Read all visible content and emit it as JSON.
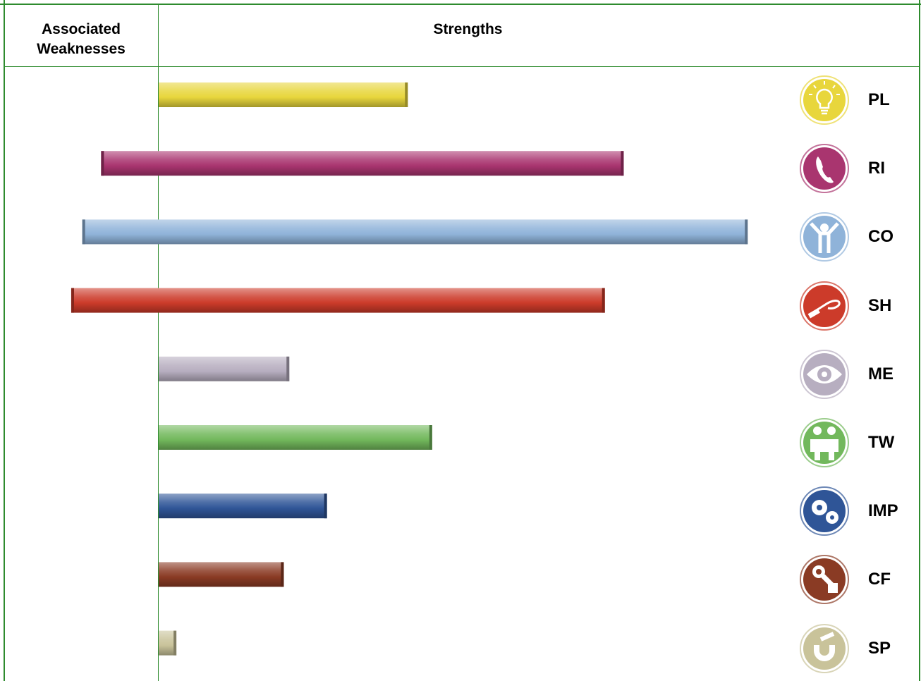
{
  "header": {
    "weaknesses_label": "Associated\nWeaknesses",
    "strengths_label": "Strengths"
  },
  "chart_data": {
    "type": "bar",
    "orientation": "horizontal-diverging",
    "categories": [
      "PL",
      "RI",
      "CO",
      "SH",
      "ME",
      "TW",
      "IMP",
      "CF",
      "SP"
    ],
    "series": [
      {
        "values": [
          22.5,
          42,
          53.2,
          40.3,
          11.8,
          24.7,
          15.2,
          11.3,
          1.6
        ]
      },
      {
        "values": [
          0,
          5.2,
          6.9,
          7.9,
          0,
          0,
          0,
          0,
          0
        ]
      }
    ],
    "colors": [
      "#e8d63c",
      "#a9356f",
      "#8fb3d9",
      "#cc3b2a",
      "#b7aec0",
      "#72b85c",
      "#2f5597",
      "#8a3b24",
      "#c9c39a"
    ],
    "xlim": [
      -8,
      56
    ],
    "grid": false,
    "icons": [
      "lightbulb-icon",
      "telephone-icon",
      "person-arms-raised-icon",
      "whip-icon",
      "eye-icon",
      "two-people-icon",
      "gears-icon",
      "wrench-hand-icon",
      "magnet-icon"
    ]
  }
}
